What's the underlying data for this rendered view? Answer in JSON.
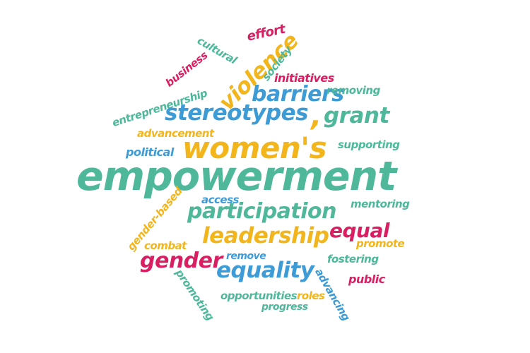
{
  "colors": {
    "teal": "#4fb89b",
    "blue": "#3d9bd6",
    "yellow": "#f2b51c",
    "pink": "#d91e62"
  },
  "words": {
    "effort": "effort",
    "cultural": "cultural",
    "violence": "violence",
    "society": "society",
    "business": "business",
    "initiatives": "initiatives",
    "entrepreneurship": "entrepreneurship",
    "barriers": "barriers",
    "removing": "removing",
    "stereotypes": "stereotypes",
    "grant": "grant",
    "apostrophe": ",",
    "advancement": "advancement",
    "political": "political",
    "womens": "women's",
    "supporting": "supporting",
    "empowerment": "empowerment",
    "access": "access",
    "gender_based": "gender-based",
    "participation": "participation",
    "mentoring": "mentoring",
    "leadership": "leadership",
    "equal": "equal",
    "combat": "combat",
    "remove": "remove",
    "promote": "promote",
    "gender": "gender",
    "fostering": "fostering",
    "equality": "equality",
    "advancing": "advancing",
    "public": "public",
    "promoting": "promoting",
    "opportunities": "opportunities",
    "roles": "roles",
    "progress": "progress"
  }
}
